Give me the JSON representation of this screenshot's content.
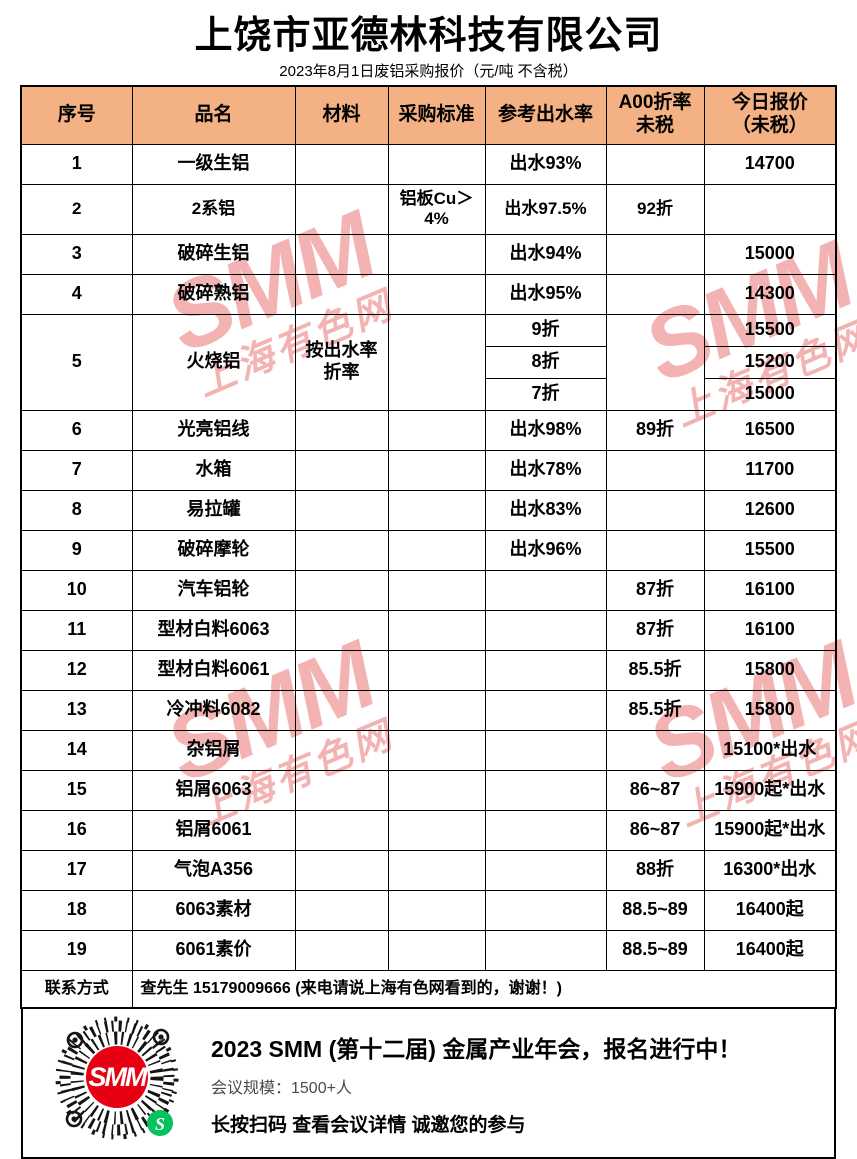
{
  "page": {
    "title": "上饶市亚德林科技有限公司",
    "subtitle": "2023年8月1日废铝采购报价（元/吨 不含税）"
  },
  "watermark": {
    "brand": "SMM",
    "site": "上海有色网"
  },
  "colors": {
    "header_bg": "#F4B183",
    "watermark_red": "#E44A4A",
    "smm_red": "#E60012",
    "wechat_green": "#07C160"
  },
  "table": {
    "columns": [
      "序号",
      "品名",
      "材料",
      "采购标准",
      "参考出水率",
      "A00折率\n未税",
      "今日报价\n（未税）"
    ],
    "rows": [
      {
        "no": "1",
        "name": "一级生铝",
        "material": "",
        "standard": "",
        "yield": "出水93%",
        "rate": "",
        "price": "14700"
      },
      {
        "no": "2",
        "name": "2系铝",
        "material": "",
        "standard": "铝板Cu＞\n4%",
        "yield": "出水97.5%",
        "rate": "92折",
        "price": "",
        "tall": true
      },
      {
        "no": "3",
        "name": "破碎生铝",
        "material": "",
        "standard": "",
        "yield": "出水94%",
        "rate": "",
        "price": "15000"
      },
      {
        "no": "4",
        "name": "破碎熟铝",
        "material": "",
        "standard": "",
        "yield": "出水95%",
        "rate": "",
        "price": "14300"
      },
      {
        "no": "5",
        "name": "火烧铝",
        "material": "按出水率\n折率",
        "standard": "",
        "rate": "",
        "sub": [
          {
            "yield": "9折",
            "price": "15500"
          },
          {
            "yield": "8折",
            "price": "15200"
          },
          {
            "yield": "7折",
            "price": "15000"
          }
        ]
      },
      {
        "no": "6",
        "name": "光亮铝线",
        "material": "",
        "standard": "",
        "yield": "出水98%",
        "rate": "89折",
        "price": "16500"
      },
      {
        "no": "7",
        "name": "水箱",
        "material": "",
        "standard": "",
        "yield": "出水78%",
        "rate": "",
        "price": "11700"
      },
      {
        "no": "8",
        "name": "易拉罐",
        "material": "",
        "standard": "",
        "yield": "出水83%",
        "rate": "",
        "price": "12600"
      },
      {
        "no": "9",
        "name": "破碎摩轮",
        "material": "",
        "standard": "",
        "yield": "出水96%",
        "rate": "",
        "price": "15500"
      },
      {
        "no": "10",
        "name": "汽车铝轮",
        "material": "",
        "standard": "",
        "yield": "",
        "rate": "87折",
        "price": "16100"
      },
      {
        "no": "11",
        "name": "型材白料6063",
        "material": "",
        "standard": "",
        "yield": "",
        "rate": "87折",
        "price": "16100"
      },
      {
        "no": "12",
        "name": "型材白料6061",
        "material": "",
        "standard": "",
        "yield": "",
        "rate": "85.5折",
        "price": "15800"
      },
      {
        "no": "13",
        "name": "冷冲料6082",
        "material": "",
        "standard": "",
        "yield": "",
        "rate": "85.5折",
        "price": "15800"
      },
      {
        "no": "14",
        "name": "杂铝屑",
        "material": "",
        "standard": "",
        "yield": "",
        "rate": "",
        "price": "15100*出水"
      },
      {
        "no": "15",
        "name": "铝屑6063",
        "material": "",
        "standard": "",
        "yield": "",
        "rate": "86~87",
        "price": "15900起*出水"
      },
      {
        "no": "16",
        "name": "铝屑6061",
        "material": "",
        "standard": "",
        "yield": "",
        "rate": "86~87",
        "price": "15900起*出水"
      },
      {
        "no": "17",
        "name": "气泡A356",
        "material": "",
        "standard": "",
        "yield": "",
        "rate": "88折",
        "price": "16300*出水"
      },
      {
        "no": "18",
        "name": "6063素材",
        "material": "",
        "standard": "",
        "yield": "",
        "rate": "88.5~89",
        "price": "16400起"
      },
      {
        "no": "19",
        "name": "6061素价",
        "material": "",
        "standard": "",
        "yield": "",
        "rate": "88.5~89",
        "price": "16400起"
      }
    ],
    "contact": {
      "label": "联系方式",
      "value": "查先生 15179009666  (来电请说上海有色网看到的，谢谢！)"
    }
  },
  "footer": {
    "headline": "2023 SMM (第十二届) 金属产业年会，报名进行中！",
    "scale_line": "会议规模：1500+人",
    "cta_line": "长按扫码 查看会议详情  诚邀您的参与",
    "qr_center_label": "SMM",
    "wechat_glyph": "S"
  }
}
